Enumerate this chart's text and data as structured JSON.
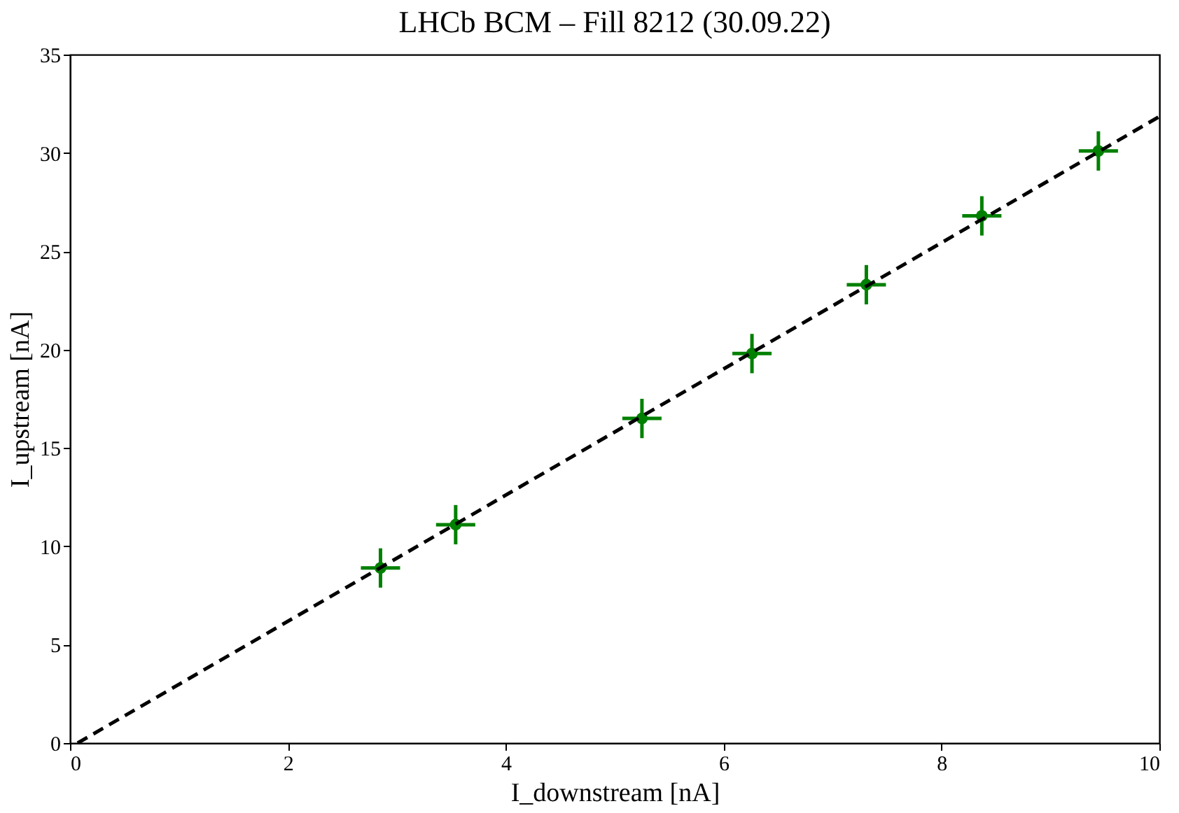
{
  "chart_data": {
    "type": "scatter",
    "title": "LHCb BCM – Fill 8212 (30.09.22)",
    "xlabel": "I_downstream [nA]",
    "ylabel": "I_upstream [nA]",
    "x": [
      2.85,
      3.54,
      5.25,
      6.26,
      7.31,
      8.37,
      9.44
    ],
    "series": [
      {
        "color": "#008000",
        "marker": "circle",
        "values": [
          8.9,
          11.1,
          16.5,
          19.8,
          23.3,
          26.8,
          30.1
        ],
        "errors": [
          1.0,
          1.0,
          1.0,
          1.0,
          1.0,
          1.0,
          1.0
        ],
        "xerrors": [
          0.18,
          0.18,
          0.18,
          0.18,
          0.18,
          0.18,
          0.18
        ]
      },
      {
        "type": "line",
        "color": "#000000",
        "line_style": "dashed",
        "x": [
          0.07,
          10
        ],
        "values": [
          0,
          31.85
        ]
      }
    ],
    "xlim": [
      0,
      10
    ],
    "ylim": [
      0,
      35
    ],
    "xticks": [
      0,
      2,
      4,
      6,
      8,
      10
    ],
    "yticks": [
      0,
      5,
      10,
      15,
      20,
      25,
      30,
      35
    ],
    "grid": false
  }
}
